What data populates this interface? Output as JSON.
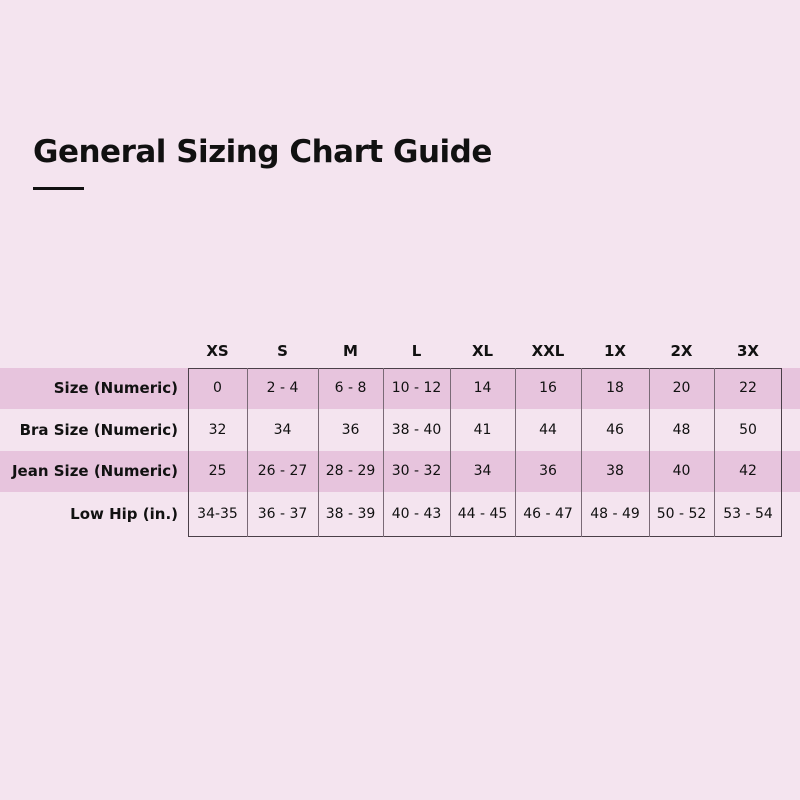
{
  "title": "General Sizing Chart Guide",
  "colors": {
    "background": "#f4e4ef",
    "band": "#e7c4dd",
    "text": "#111111"
  },
  "table": {
    "columns": [
      "XS",
      "S",
      "M",
      "L",
      "XL",
      "XXL",
      "1X",
      "2X",
      "3X"
    ],
    "rows": [
      {
        "label": "Size (Numeric)",
        "values": [
          "0",
          "2 - 4",
          "6 - 8",
          "10 - 12",
          "14",
          "16",
          "18",
          "20",
          "22"
        ]
      },
      {
        "label": "Bra Size (Numeric)",
        "values": [
          "32",
          "34",
          "36",
          "38 - 40",
          "41",
          "44",
          "46",
          "48",
          "50"
        ]
      },
      {
        "label": "Jean Size (Numeric)",
        "values": [
          "25",
          "26 - 27",
          "28 - 29",
          "30 - 32",
          "34",
          "36",
          "38",
          "40",
          "42"
        ]
      },
      {
        "label": "Low Hip (in.)",
        "values": [
          "34-35",
          "36 - 37",
          "38 - 39",
          "40 - 43",
          "44 - 45",
          "46 - 47",
          "48 - 49",
          "50 - 52",
          "53 - 54"
        ]
      }
    ]
  }
}
